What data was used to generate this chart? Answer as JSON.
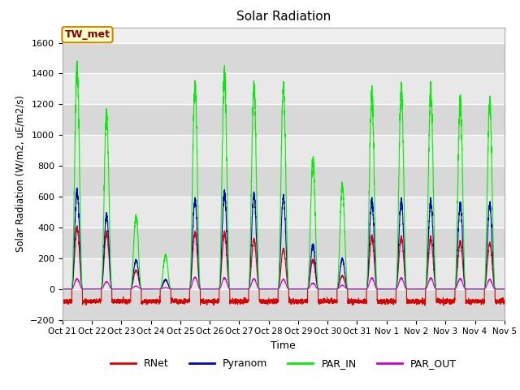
{
  "title": "Solar Radiation",
  "ylabel": "Solar Radiation (W/m2, uE/m2/s)",
  "xlabel": "Time",
  "ylim": [
    -200,
    1700
  ],
  "yticks": [
    -200,
    0,
    200,
    400,
    600,
    800,
    1000,
    1200,
    1400,
    1600
  ],
  "plot_bg": "#f0f0f0",
  "annotation_text": "TW_met",
  "annotation_bg": "#ffffcc",
  "annotation_edge": "#cc8800",
  "series_colors": {
    "RNet": "#dd0000",
    "Pyranom": "#0000cc",
    "PAR_IN": "#00ee00",
    "PAR_OUT": "#cc00cc"
  },
  "x_tick_labels": [
    "Oct 21",
    "Oct 22",
    "Oct 23",
    "Oct 24",
    "Oct 25",
    "Oct 26",
    "Oct 27",
    "Oct 28",
    "Oct 29",
    "Oct 30",
    "Oct 31",
    "Nov 1",
    "Nov 2",
    "Nov 3",
    "Nov 4",
    "Nov 5"
  ],
  "n_days": 15,
  "points_per_day": 288,
  "par_in_peaks": [
    1510,
    1180,
    500,
    230,
    1390,
    1460,
    1390,
    1370,
    880,
    700,
    1330,
    1360,
    1360,
    1280,
    1270
  ],
  "pyranom_peaks": [
    670,
    500,
    200,
    65,
    610,
    650,
    650,
    625,
    300,
    205,
    600,
    600,
    600,
    575,
    575
  ],
  "rnet_peaks": [
    420,
    380,
    130,
    60,
    385,
    380,
    340,
    270,
    200,
    90,
    355,
    350,
    350,
    320,
    310
  ],
  "par_out_peaks": [
    70,
    50,
    20,
    10,
    80,
    75,
    70,
    65,
    40,
    25,
    75,
    75,
    75,
    70,
    65
  ],
  "rnet_night": -80,
  "line_width": 0.8
}
